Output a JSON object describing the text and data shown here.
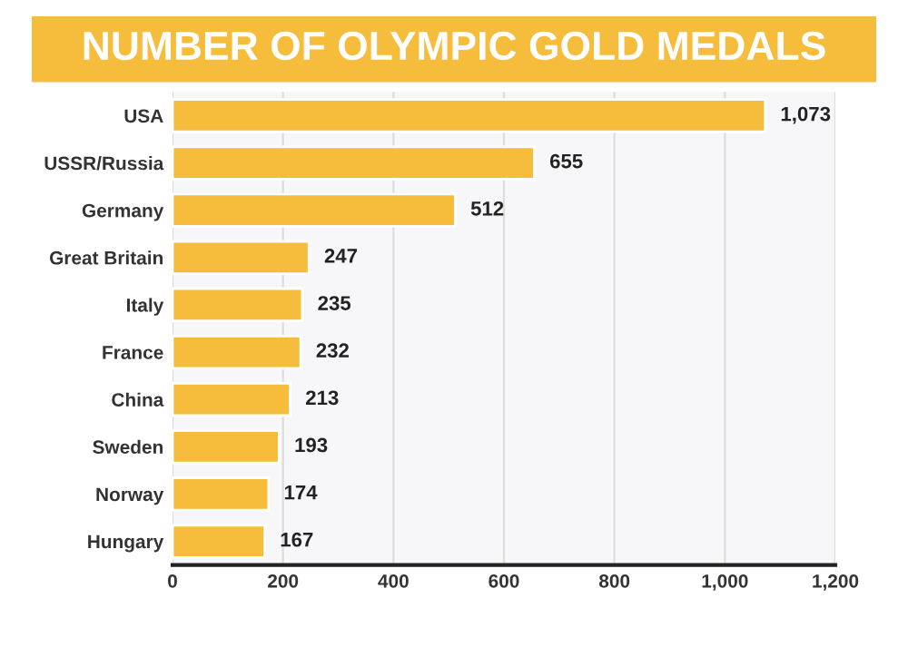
{
  "chart_data": {
    "type": "bar",
    "orientation": "horizontal",
    "title": "NUMBER OF OLYMPIC GOLD MEDALS",
    "categories": [
      "USA",
      "USSR/Russia",
      "Germany",
      "Great Britain",
      "Italy",
      "France",
      "China",
      "Sweden",
      "Norway",
      "Hungary"
    ],
    "values": [
      1073,
      655,
      512,
      247,
      235,
      232,
      213,
      193,
      174,
      167
    ],
    "value_labels": [
      "1,073",
      "655",
      "512",
      "247",
      "235",
      "232",
      "213",
      "193",
      "174",
      "167"
    ],
    "color": "#f6bd3c",
    "xlim": [
      0,
      1200
    ],
    "xticks": [
      0,
      200,
      400,
      600,
      800,
      {
        "value": 1000,
        "label": "1,000"
      },
      {
        "value": 1200,
        "label": "1,200"
      }
    ],
    "grid": "x"
  }
}
